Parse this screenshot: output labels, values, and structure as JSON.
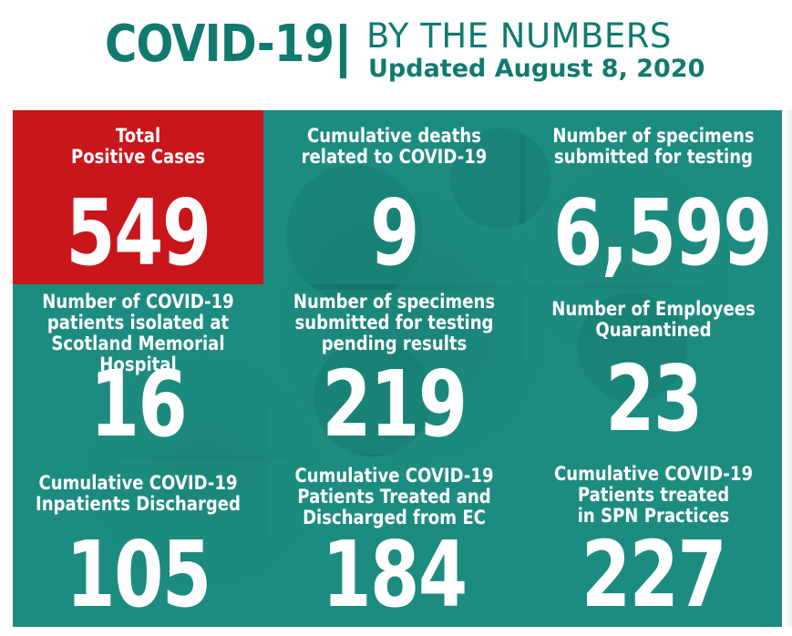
{
  "header": {
    "title": "COVID-19",
    "subtitle": "BY THE NUMBERS",
    "updated": "Updated August 8, 2020"
  },
  "colors": {
    "teal": "#117a6f",
    "tile_teal": "#1d8c80",
    "red": "#c8161b",
    "text": "#ffffff"
  },
  "tiles": [
    {
      "label_lines": [
        "Total",
        "Positive Cases"
      ],
      "value": "549"
    },
    {
      "label_lines": [
        "Cumulative deaths",
        "related to COVID-19"
      ],
      "value": "9"
    },
    {
      "label_lines": [
        "Number of specimens",
        "submitted for testing"
      ],
      "value": "6,599"
    },
    {
      "label_lines": [
        "Number of COVID-19",
        "patients isolated at",
        "Scotland Memorial Hospital"
      ],
      "value": "16"
    },
    {
      "label_lines": [
        "Number of specimens",
        "submitted for testing",
        "pending results"
      ],
      "value": "219"
    },
    {
      "label_lines": [
        "Number of Employees",
        "Quarantined"
      ],
      "value": "23"
    },
    {
      "label_lines": [
        "Cumulative COVID-19",
        "Inpatients Discharged"
      ],
      "value": "105"
    },
    {
      "label_lines": [
        "Cumulative COVID-19",
        "Patients Treated and",
        "Discharged from EC"
      ],
      "value": "184"
    },
    {
      "label_lines": [
        "Cumulative COVID-19",
        "Patients treated",
        "in SPN Practices"
      ],
      "value": "227"
    }
  ]
}
